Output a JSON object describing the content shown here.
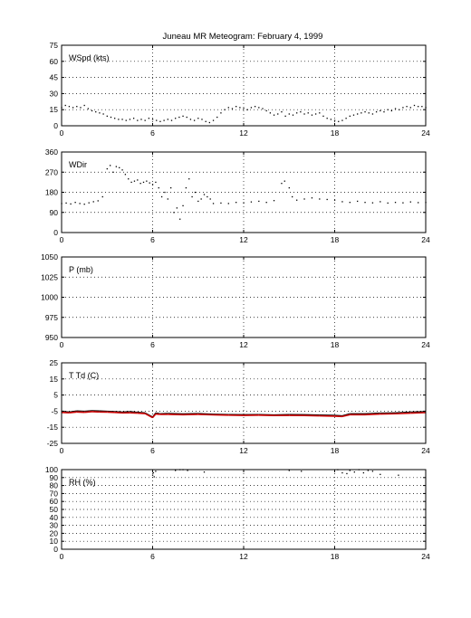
{
  "chart_data": [
    {
      "type": "scatter",
      "title": "Juneau MR Meteogram:  February  4, 1999",
      "panel_label": "WSpd (kts)",
      "xlim": [
        0,
        24
      ],
      "xticks": [
        "0",
        "6",
        "12",
        "18",
        "24"
      ],
      "ylim": [
        0,
        75
      ],
      "yticks": [
        "0",
        "15",
        "30",
        "45",
        "60",
        "75"
      ],
      "grid": true,
      "series": [
        {
          "color": "#000000",
          "points": [
            [
              0,
              17
            ],
            [
              0.25,
              19
            ],
            [
              0.5,
              18
            ],
            [
              0.75,
              17
            ],
            [
              1,
              18
            ],
            [
              1.25,
              17
            ],
            [
              1.5,
              19
            ],
            [
              1.75,
              16
            ],
            [
              2,
              14
            ],
            [
              2.25,
              13
            ],
            [
              2.5,
              12
            ],
            [
              2.75,
              11
            ],
            [
              3,
              9
            ],
            [
              3.25,
              8
            ],
            [
              3.5,
              7
            ],
            [
              3.75,
              6
            ],
            [
              4,
              6
            ],
            [
              4.25,
              5
            ],
            [
              4.5,
              6
            ],
            [
              4.75,
              7
            ],
            [
              5,
              5
            ],
            [
              5.25,
              6
            ],
            [
              5.5,
              5
            ],
            [
              5.75,
              7
            ],
            [
              6,
              6
            ],
            [
              6.25,
              5
            ],
            [
              6.5,
              4
            ],
            [
              6.75,
              5
            ],
            [
              7,
              6
            ],
            [
              7.25,
              5
            ],
            [
              7.5,
              7
            ],
            [
              7.75,
              8
            ],
            [
              8,
              9
            ],
            [
              8.25,
              8
            ],
            [
              8.5,
              6
            ],
            [
              8.75,
              5
            ],
            [
              9,
              7
            ],
            [
              9.25,
              6
            ],
            [
              9.5,
              4
            ],
            [
              9.75,
              3
            ],
            [
              10,
              5
            ],
            [
              10.25,
              8
            ],
            [
              10.5,
              12
            ],
            [
              10.75,
              15
            ],
            [
              11,
              17
            ],
            [
              11.25,
              16
            ],
            [
              11.5,
              18
            ],
            [
              11.75,
              17
            ],
            [
              12,
              16
            ],
            [
              12.25,
              15
            ],
            [
              12.5,
              17
            ],
            [
              12.75,
              18
            ],
            [
              13,
              17
            ],
            [
              13.25,
              16
            ],
            [
              13.5,
              14
            ],
            [
              13.75,
              12
            ],
            [
              14,
              10
            ],
            [
              14.25,
              11
            ],
            [
              14.5,
              13
            ],
            [
              14.75,
              9
            ],
            [
              15,
              11
            ],
            [
              15.25,
              10
            ],
            [
              15.5,
              12
            ],
            [
              15.75,
              13
            ],
            [
              16,
              11
            ],
            [
              16.25,
              12
            ],
            [
              16.5,
              10
            ],
            [
              16.75,
              11
            ],
            [
              17,
              12
            ],
            [
              17.25,
              9
            ],
            [
              17.5,
              7
            ],
            [
              17.75,
              6
            ],
            [
              18,
              5
            ],
            [
              18.25,
              4
            ],
            [
              18.5,
              5
            ],
            [
              18.75,
              7
            ],
            [
              19,
              9
            ],
            [
              19.25,
              10
            ],
            [
              19.5,
              11
            ],
            [
              19.75,
              12
            ],
            [
              20,
              13
            ],
            [
              20.25,
              12
            ],
            [
              20.5,
              11
            ],
            [
              20.75,
              13
            ],
            [
              21,
              14
            ],
            [
              21.25,
              13
            ],
            [
              21.5,
              15
            ],
            [
              21.75,
              14
            ],
            [
              22,
              16
            ],
            [
              22.25,
              15
            ],
            [
              22.5,
              17
            ],
            [
              22.75,
              18
            ],
            [
              23,
              17
            ],
            [
              23.25,
              19
            ],
            [
              23.5,
              18
            ],
            [
              23.75,
              18
            ],
            [
              24,
              17
            ]
          ]
        }
      ]
    },
    {
      "type": "scatter",
      "panel_label": "WDir",
      "xlim": [
        0,
        24
      ],
      "xticks": [
        "0",
        "6",
        "12",
        "18",
        "24"
      ],
      "ylim": [
        0,
        360
      ],
      "yticks": [
        "0",
        "90",
        "180",
        "270",
        "360"
      ],
      "grid": true,
      "series": [
        {
          "color": "#000000",
          "points": [
            [
              0,
              130
            ],
            [
              0.3,
              132
            ],
            [
              0.6,
              128
            ],
            [
              0.9,
              135
            ],
            [
              1.2,
              130
            ],
            [
              1.5,
              127
            ],
            [
              1.8,
              133
            ],
            [
              2.1,
              138
            ],
            [
              2.4,
              142
            ],
            [
              2.7,
              160
            ],
            [
              3,
              285
            ],
            [
              3.2,
              300
            ],
            [
              3.4,
              270
            ],
            [
              3.6,
              295
            ],
            [
              3.8,
              290
            ],
            [
              4,
              280
            ],
            [
              4.2,
              260
            ],
            [
              4.4,
              240
            ],
            [
              4.6,
              225
            ],
            [
              4.8,
              230
            ],
            [
              5,
              235
            ],
            [
              5.2,
              220
            ],
            [
              5.4,
              225
            ],
            [
              5.6,
              230
            ],
            [
              5.8,
              222
            ],
            [
              6,
              215
            ],
            [
              6.2,
              225
            ],
            [
              6.4,
              200
            ],
            [
              6.6,
              160
            ],
            [
              6.8,
              180
            ],
            [
              7,
              150
            ],
            [
              7.2,
              200
            ],
            [
              7.4,
              90
            ],
            [
              7.6,
              110
            ],
            [
              7.8,
              60
            ],
            [
              8,
              120
            ],
            [
              8.2,
              200
            ],
            [
              8.4,
              240
            ],
            [
              8.6,
              160
            ],
            [
              8.8,
              180
            ],
            [
              9,
              140
            ],
            [
              9.2,
              150
            ],
            [
              9.4,
              170
            ],
            [
              9.6,
              160
            ],
            [
              9.8,
              150
            ],
            [
              10,
              130
            ],
            [
              10.5,
              132
            ],
            [
              11,
              130
            ],
            [
              11.5,
              135
            ],
            [
              12,
              133
            ],
            [
              12.5,
              137
            ],
            [
              13,
              140
            ],
            [
              13.5,
              135
            ],
            [
              14,
              143
            ],
            [
              14.5,
              220
            ],
            [
              14.7,
              230
            ],
            [
              15,
              200
            ],
            [
              15.2,
              160
            ],
            [
              15.5,
              145
            ],
            [
              16,
              150
            ],
            [
              16.5,
              155
            ],
            [
              17,
              150
            ],
            [
              17.5,
              148
            ],
            [
              18,
              145
            ],
            [
              18.5,
              138
            ],
            [
              19,
              135
            ],
            [
              19.5,
              140
            ],
            [
              20,
              135
            ],
            [
              20.5,
              133
            ],
            [
              21,
              138
            ],
            [
              21.5,
              132
            ],
            [
              22,
              135
            ],
            [
              22.5,
              133
            ],
            [
              23,
              137
            ],
            [
              23.5,
              134
            ],
            [
              24,
              135
            ]
          ]
        }
      ]
    },
    {
      "type": "scatter",
      "panel_label": "P (mb)",
      "xlim": [
        0,
        24
      ],
      "xticks": [
        "0",
        "6",
        "12",
        "18",
        "24"
      ],
      "ylim": [
        950,
        1050
      ],
      "yticks": [
        "950",
        "975",
        "1000",
        "1025",
        "1050"
      ],
      "grid": true,
      "series": []
    },
    {
      "type": "line",
      "panel_label": "T Td (C)",
      "xlim": [
        0,
        24
      ],
      "xticks": [
        "0",
        "6",
        "12",
        "18",
        "24"
      ],
      "ylim": [
        -25,
        25
      ],
      "yticks": [
        "-25",
        "-15",
        "-5",
        "5",
        "15",
        "25"
      ],
      "grid": true,
      "series": [
        {
          "color": "#000000",
          "points": [
            [
              0,
              -5
            ],
            [
              0.5,
              -5.5
            ],
            [
              1,
              -4.8
            ],
            [
              1.5,
              -5
            ],
            [
              2,
              -4.6
            ],
            [
              2.5,
              -4.8
            ],
            [
              3,
              -5
            ],
            [
              3.5,
              -5.2
            ],
            [
              4,
              -5.5
            ],
            [
              4.5,
              -5.2
            ],
            [
              5,
              -5.6
            ],
            [
              5.5,
              -6
            ],
            [
              6,
              -8.5
            ],
            [
              6.2,
              -6
            ],
            [
              6.5,
              -6.5
            ],
            [
              7,
              -6.3
            ],
            [
              8,
              -6.6
            ],
            [
              9,
              -6.4
            ],
            [
              10,
              -6.8
            ],
            [
              11,
              -7
            ],
            [
              12,
              -7.1
            ],
            [
              13,
              -7
            ],
            [
              14,
              -7.2
            ],
            [
              15,
              -7
            ],
            [
              16,
              -7.1
            ],
            [
              17,
              -7.3
            ],
            [
              18,
              -7.5
            ],
            [
              18.5,
              -7.8
            ],
            [
              19,
              -6.5
            ],
            [
              20,
              -6.5
            ],
            [
              21,
              -6.1
            ],
            [
              22,
              -6
            ],
            [
              23,
              -5.5
            ],
            [
              24,
              -5.2
            ]
          ]
        },
        {
          "color": "#cc0000",
          "points": [
            [
              0,
              -5.8
            ],
            [
              0.5,
              -6
            ],
            [
              1,
              -5.5
            ],
            [
              1.5,
              -5.7
            ],
            [
              2,
              -5.3
            ],
            [
              2.5,
              -5.5
            ],
            [
              3,
              -5.6
            ],
            [
              3.5,
              -5.8
            ],
            [
              4,
              -6.1
            ],
            [
              4.5,
              -6
            ],
            [
              5,
              -6.2
            ],
            [
              5.5,
              -6.5
            ],
            [
              6,
              -9
            ],
            [
              6.2,
              -6.8
            ],
            [
              6.5,
              -7
            ],
            [
              7,
              -7
            ],
            [
              8,
              -7.2
            ],
            [
              9,
              -7
            ],
            [
              10,
              -7.3
            ],
            [
              11,
              -7.5
            ],
            [
              12,
              -7.6
            ],
            [
              13,
              -7.5
            ],
            [
              14,
              -7.7
            ],
            [
              15,
              -7.6
            ],
            [
              16,
              -7.7
            ],
            [
              17,
              -7.9
            ],
            [
              18,
              -8.1
            ],
            [
              18.5,
              -8.3
            ],
            [
              19,
              -7.2
            ],
            [
              20,
              -7.2
            ],
            [
              21,
              -6.8
            ],
            [
              22,
              -6.6
            ],
            [
              23,
              -6.2
            ],
            [
              24,
              -5.9
            ]
          ]
        }
      ]
    },
    {
      "type": "scatter",
      "panel_label": "RH (%)",
      "xlim": [
        0,
        24
      ],
      "xticks": [
        "0",
        "6",
        "12",
        "18",
        "24"
      ],
      "ylim": [
        0,
        100
      ],
      "yticks": [
        "0",
        "10",
        "20",
        "30",
        "40",
        "50",
        "60",
        "70",
        "80",
        "90",
        "100"
      ],
      "grid": true,
      "series": [
        {
          "color": "#000000",
          "points": [
            [
              6,
              93
            ],
            [
              6.05,
              96
            ],
            [
              6.1,
              91
            ],
            [
              6.2,
              98
            ],
            [
              7.5,
              99
            ],
            [
              7.8,
              100
            ],
            [
              8,
              100
            ],
            [
              8.3,
              99
            ],
            [
              9.4,
              97
            ],
            [
              15,
              99
            ],
            [
              15.8,
              98
            ],
            [
              18.2,
              100
            ],
            [
              18.5,
              96
            ],
            [
              18.8,
              95
            ],
            [
              19,
              99
            ],
            [
              19.3,
              97
            ],
            [
              19.6,
              100
            ],
            [
              19.9,
              96
            ],
            [
              20.2,
              99
            ],
            [
              20.5,
              98
            ],
            [
              21,
              94
            ],
            [
              22.2,
              93
            ]
          ]
        }
      ]
    }
  ]
}
